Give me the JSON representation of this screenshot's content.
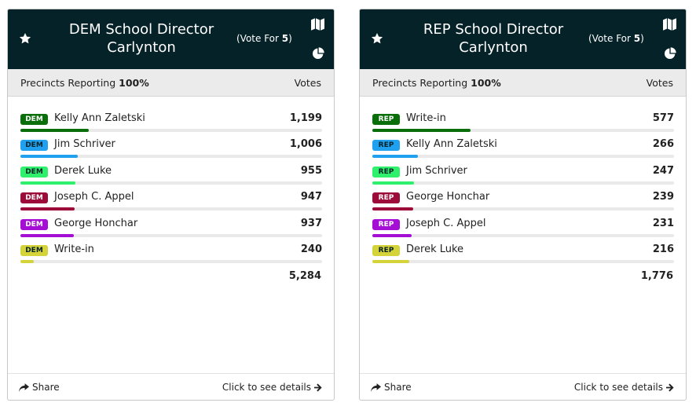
{
  "cards": [
    {
      "title_line1": "DEM School Director",
      "title_line2": "Carlynton",
      "vote_for_prefix": "(Vote For ",
      "vote_for_count": "5",
      "vote_for_suffix": ")",
      "precincts_label": "Precincts Reporting",
      "precincts_value": "100%",
      "votes_label": "Votes",
      "total": "5,284",
      "share_label": "Share",
      "details_label": "Click to see details",
      "candidates": [
        {
          "party": "DEM",
          "name": "Kelly Ann Zaletski",
          "votes": "1,199",
          "share": 0.227,
          "color": "#0a6e0a",
          "text_color": "#ffffff"
        },
        {
          "party": "DEM",
          "name": "Jim Schriver",
          "votes": "1,006",
          "share": 0.19,
          "color": "#1fa1f0",
          "text_color": "#062229"
        },
        {
          "party": "DEM",
          "name": "Derek Luke",
          "votes": "955",
          "share": 0.181,
          "color": "#2ef06c",
          "text_color": "#062229"
        },
        {
          "party": "DEM",
          "name": "Joseph C. Appel",
          "votes": "947",
          "share": 0.179,
          "color": "#9c0b3a",
          "text_color": "#ffffff"
        },
        {
          "party": "DEM",
          "name": "George Honchar",
          "votes": "937",
          "share": 0.177,
          "color": "#a50ed4",
          "text_color": "#ffffff"
        },
        {
          "party": "DEM",
          "name": "Write-in",
          "votes": "240",
          "share": 0.045,
          "color": "#d4d43a",
          "text_color": "#062229"
        }
      ]
    },
    {
      "title_line1": "REP School Director",
      "title_line2": "Carlynton",
      "vote_for_prefix": "(Vote For ",
      "vote_for_count": "5",
      "vote_for_suffix": ")",
      "precincts_label": "Precincts Reporting",
      "precincts_value": "100%",
      "votes_label": "Votes",
      "total": "1,776",
      "share_label": "Share",
      "details_label": "Click to see details",
      "candidates": [
        {
          "party": "REP",
          "name": "Write-in",
          "votes": "577",
          "share": 0.325,
          "color": "#0a6e0a",
          "text_color": "#ffffff"
        },
        {
          "party": "REP",
          "name": "Kelly Ann Zaletski",
          "votes": "266",
          "share": 0.15,
          "color": "#1fa1f0",
          "text_color": "#062229"
        },
        {
          "party": "REP",
          "name": "Jim Schriver",
          "votes": "247",
          "share": 0.139,
          "color": "#2ef06c",
          "text_color": "#062229"
        },
        {
          "party": "REP",
          "name": "George Honchar",
          "votes": "239",
          "share": 0.135,
          "color": "#9c0b3a",
          "text_color": "#ffffff"
        },
        {
          "party": "REP",
          "name": "Joseph C. Appel",
          "votes": "231",
          "share": 0.13,
          "color": "#a50ed4",
          "text_color": "#ffffff"
        },
        {
          "party": "REP",
          "name": "Derek Luke",
          "votes": "216",
          "share": 0.122,
          "color": "#d4d43a",
          "text_color": "#062229"
        }
      ]
    }
  ],
  "icons": {
    "favorite": "star-icon",
    "map": "map-icon",
    "chart": "pie-chart-icon",
    "share": "share-icon",
    "details": "arrow-right-icon"
  },
  "colors": {
    "header_bg": "#062229",
    "subheader_bg": "#ebebeb",
    "bar_track": "#e9e9e9"
  }
}
